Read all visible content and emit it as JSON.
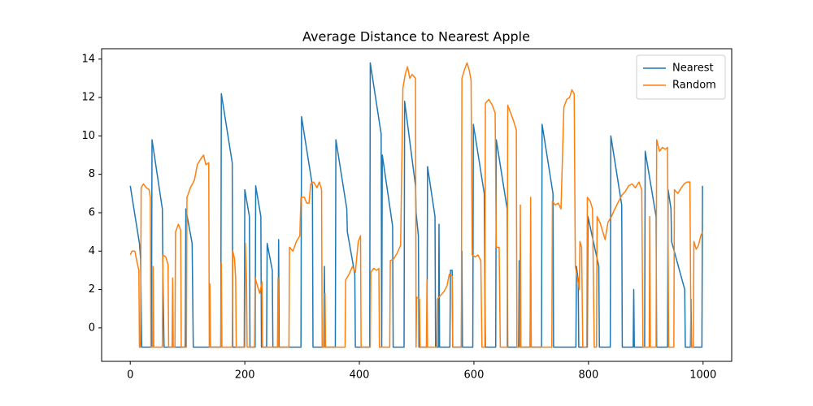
{
  "chart_data": {
    "type": "line",
    "title": "Average Distance to Nearest Apple",
    "xlim": [
      -50,
      1050
    ],
    "xticks": [
      0,
      200,
      400,
      600,
      800,
      1000
    ],
    "ylim": [
      -1.74,
      14.54
    ],
    "yticks": [
      0,
      2,
      4,
      6,
      8,
      10,
      12,
      14
    ],
    "grid": false,
    "legend": "upper right",
    "series": [
      {
        "name": "Nearest",
        "color": "#1f77b4",
        "x": [
          0,
          16,
          18,
          20,
          37,
          38,
          56,
          57,
          59,
          96,
          97,
          108,
          110,
          158,
          159,
          178,
          179,
          199,
          200,
          208,
          209,
          218,
          219,
          228,
          229,
          238,
          239,
          248,
          249,
          258,
          259,
          260,
          298,
          299,
          318,
          319,
          338,
          339,
          340,
          358,
          359,
          378,
          379,
          392,
          393,
          418,
          419,
          438,
          439,
          440,
          458,
          459,
          478,
          479,
          498,
          499,
          503,
          504,
          518,
          519,
          532,
          533,
          538,
          539,
          540,
          558,
          559,
          562,
          563,
          578,
          579,
          580,
          598,
          599,
          618,
          619,
          620,
          638,
          639,
          658,
          659,
          678,
          679,
          680,
          698,
          699,
          700,
          718,
          719,
          738,
          739,
          778,
          779,
          782,
          783,
          798,
          799,
          818,
          819,
          838,
          839,
          858,
          859,
          878,
          879,
          880,
          898,
          899,
          918,
          919,
          938,
          939,
          944,
          945,
          968,
          969,
          978,
          979,
          980,
          998,
          999
        ],
        "values": [
          7.4,
          4.4,
          3.6,
          -1,
          -1,
          9.8,
          6.2,
          2.5,
          -1,
          -1,
          6.2,
          4.4,
          -1,
          -1,
          12.2,
          8.6,
          -1,
          -1,
          7.2,
          5.8,
          -1,
          -1,
          7.4,
          5.8,
          -1,
          -1,
          4.4,
          3,
          -1,
          -1,
          4.6,
          -1,
          -1,
          11,
          7.4,
          -1,
          -1,
          3.2,
          -1,
          -1,
          9.8,
          6.2,
          5,
          2.8,
          -1,
          -1,
          13.8,
          10.1,
          -1,
          9,
          5.3,
          -1,
          -1,
          11.8,
          7.4,
          6,
          4.8,
          -1,
          -1,
          8.4,
          5.8,
          -1,
          -1,
          5.4,
          -1,
          -1,
          3,
          3,
          -1,
          -1,
          4,
          -1,
          -1,
          10.6,
          7,
          2,
          -1,
          -1,
          9.8,
          6.2,
          -1,
          -1,
          3.5,
          -1,
          -1,
          3.6,
          -1,
          -1,
          10.6,
          7,
          -1,
          -1,
          3.2,
          2.5,
          -1,
          -1,
          5.8,
          3.2,
          -1,
          -1,
          10,
          6.4,
          -1,
          -1,
          2,
          -1,
          -1,
          9.2,
          5.8,
          -1,
          -1,
          7.2,
          6.2,
          4.5,
          2,
          -1,
          -1,
          1.5,
          -1,
          -1,
          7.4
        ]
      },
      {
        "name": "Random",
        "color": "#ff7f0e",
        "x": [
          0,
          3,
          8,
          12,
          15,
          16,
          18,
          19,
          23,
          28,
          33,
          35,
          36,
          39,
          40,
          41,
          56,
          57,
          62,
          66,
          67,
          73,
          74,
          75,
          78,
          79,
          84,
          88,
          89,
          98,
          99,
          105,
          112,
          117,
          123,
          128,
          132,
          137,
          138,
          139,
          140,
          158,
          159,
          160,
          178,
          179,
          182,
          184,
          185,
          200,
          201,
          203,
          204,
          217,
          218,
          222,
          226,
          230,
          231,
          257,
          258,
          259,
          277,
          278,
          284,
          290,
          296,
          298,
          304,
          308,
          312,
          315,
          320,
          326,
          330,
          334,
          335,
          339,
          340,
          341,
          375,
          376,
          382,
          388,
          393,
          398,
          402,
          403,
          419,
          420,
          425,
          430,
          434,
          435,
          453,
          454,
          460,
          466,
          472,
          476,
          480,
          484,
          488,
          492,
          498,
          499,
          500,
          505,
          506,
          517,
          518,
          519,
          535,
          536,
          542,
          548,
          553,
          557,
          562,
          563,
          578,
          579,
          584,
          588,
          592,
          595,
          597,
          602,
          607,
          612,
          614,
          619,
          620,
          626,
          632,
          637,
          639,
          644,
          646,
          658,
          659,
          664,
          669,
          674,
          675,
          680,
          681,
          682,
          698,
          699,
          700,
          736,
          737,
          742,
          747,
          752,
          757,
          762,
          767,
          771,
          775,
          777,
          781,
          784,
          785,
          788,
          790,
          797,
          798,
          803,
          807,
          810,
          814,
          815,
          820,
          825,
          829,
          834,
          840,
          846,
          851,
          858,
          864,
          870,
          876,
          882,
          888,
          893,
          895,
          906,
          907,
          908,
          918,
          919,
          924,
          929,
          934,
          938,
          940,
          949,
          950,
          956,
          962,
          967,
          972,
          977,
          979,
          983,
          984,
          988,
          992,
          996,
          999
        ],
        "values": [
          3.8,
          4,
          4,
          3.4,
          3,
          -1,
          -1,
          7.3,
          7.5,
          7.3,
          7.2,
          6.8,
          -1,
          -1,
          3.2,
          -1,
          -1,
          3.8,
          3.7,
          3.3,
          -1,
          -1,
          2.6,
          -1,
          -1,
          5,
          5.4,
          5.1,
          -1,
          -1,
          6.8,
          7.3,
          7.7,
          8.5,
          8.8,
          9,
          8.5,
          8.6,
          -1,
          2.3,
          -1,
          -1,
          3.4,
          -1,
          -1,
          4,
          3.6,
          2.6,
          -1,
          -1,
          4.4,
          2.3,
          -1,
          -1,
          2.6,
          2.2,
          1.8,
          2.4,
          -1,
          -1,
          2.6,
          -1,
          -1,
          4.2,
          4,
          4.5,
          4.8,
          6.8,
          6.8,
          6.5,
          6.5,
          7.5,
          7.6,
          7.3,
          7.6,
          7.2,
          -1,
          -1,
          1.8,
          -1,
          -1,
          2.5,
          2.8,
          3.2,
          2.9,
          4.5,
          4.8,
          -1,
          -1,
          2.9,
          3.1,
          3,
          3.1,
          -1,
          -1,
          3.5,
          3.6,
          3.9,
          4.3,
          12.5,
          13.2,
          13.6,
          13,
          13.2,
          13,
          -1,
          1.6,
          1.5,
          -1,
          -1,
          2.5,
          -1,
          -1,
          1.5,
          1.7,
          1.9,
          2.2,
          2.8,
          2.7,
          -1,
          -1,
          13,
          13.5,
          13.8,
          13.4,
          12.9,
          3.8,
          3.7,
          3.8,
          3.5,
          -1,
          -1,
          11.7,
          11.9,
          11.6,
          11.2,
          4.2,
          4.2,
          -1,
          -1,
          11.6,
          11.2,
          10.8,
          10.3,
          -1,
          -1,
          6.4,
          -1,
          -1,
          6.8,
          -1,
          -1,
          6.6,
          6.4,
          6.5,
          6.2,
          11.5,
          11.9,
          12,
          12.4,
          12.2,
          3.2,
          2.5,
          2,
          4.5,
          4.2,
          -1,
          -1,
          6.8,
          6.6,
          6.2,
          -1,
          -1,
          5.8,
          5.5,
          5,
          4.6,
          5.5,
          5.8,
          6.2,
          6.5,
          6.9,
          7.1,
          7.4,
          7.5,
          7.3,
          7.6,
          7.2,
          -1,
          -1,
          5.8,
          -1,
          -1,
          9.8,
          9.2,
          9.4,
          9.3,
          9.4,
          -1,
          -1,
          7.2,
          7,
          7.3,
          7.5,
          7.6,
          7.6,
          -1,
          -1,
          4.5,
          4.1,
          4.3,
          4.8,
          5
        ]
      }
    ]
  }
}
